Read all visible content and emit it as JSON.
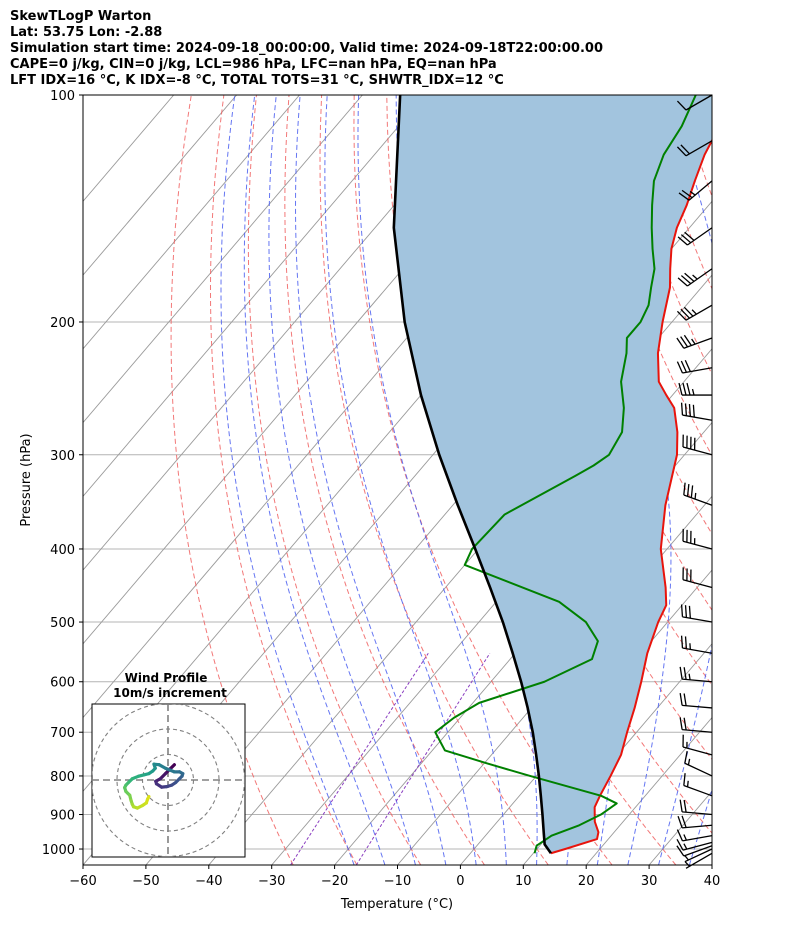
{
  "header": {
    "line1": "SkewTLogP Warton",
    "line2": "Lat: 53.75   Lon: -2.88",
    "line3": "Simulation start time: 2024-09-18_00:00:00, Valid time: 2024-09-18T22:00:00.00",
    "line4": "CAPE=0 j/kg, CIN=0 j/kg, LCL=986 hPa, LFC=nan hPa, EQ=nan hPa",
    "line5": "LFT IDX=16 °C, K IDX=-8 °C, TOTAL TOTS=31 °C, SHWTR_IDX=12 °C"
  },
  "colors": {
    "temperature": "#e8140c",
    "dewpoint": "#008000",
    "parcel": "#000000",
    "cape_fill": "#a2c4de",
    "dry_adiabat": "#f06060",
    "moist_adiabat": "#4a5ef0",
    "mixing_ratio": "#8a3ec0",
    "isotherm": "#9a9a9a",
    "grid": "#b4b4b4"
  },
  "chart_data": {
    "type": "skew-t",
    "xlabel": "Temperature (°C)",
    "ylabel": "Pressure (hPa)",
    "xlim": [
      -60,
      40
    ],
    "ylim": [
      1050,
      100
    ],
    "x_ticks": [
      "−60",
      "−50",
      "−40",
      "−30",
      "−20",
      "−10",
      "0",
      "10",
      "20",
      "30",
      "40"
    ],
    "y_ticks": [
      {
        "p": 100,
        "label": "100"
      },
      {
        "p": 200,
        "label": "200"
      },
      {
        "p": 300,
        "label": "300"
      },
      {
        "p": 400,
        "label": "400"
      },
      {
        "p": 500,
        "label": "500"
      },
      {
        "p": 600,
        "label": "600"
      },
      {
        "p": 700,
        "label": "700"
      },
      {
        "p": 800,
        "label": "800"
      },
      {
        "p": 900,
        "label": "900"
      },
      {
        "p": 1000,
        "label": "1000"
      }
    ],
    "series": [
      {
        "key": "temperature",
        "points": [
          [
            1013,
            12.8
          ],
          [
            1000,
            14.5
          ],
          [
            970,
            18.2
          ],
          [
            950,
            17.5
          ],
          [
            920,
            15.5
          ],
          [
            880,
            13.5
          ],
          [
            850,
            12.8
          ],
          [
            800,
            11.8
          ],
          [
            750,
            10.6
          ],
          [
            700,
            8.5
          ],
          [
            650,
            6.4
          ],
          [
            600,
            3.9
          ],
          [
            550,
            1.0
          ],
          [
            500,
            -1.5
          ],
          [
            475,
            -2.5
          ],
          [
            450,
            -5.0
          ],
          [
            400,
            -11.0
          ],
          [
            350,
            -16.2
          ],
          [
            300,
            -21.2
          ],
          [
            280,
            -24.2
          ],
          [
            260,
            -28.0
          ],
          [
            250,
            -31.0
          ],
          [
            240,
            -34.0
          ],
          [
            220,
            -38.0
          ],
          [
            200,
            -41.5
          ],
          [
            180,
            -45.0
          ],
          [
            170,
            -47.5
          ],
          [
            160,
            -50.0
          ],
          [
            150,
            -52.0
          ],
          [
            140,
            -53.5
          ],
          [
            130,
            -55.5
          ],
          [
            120,
            -57.5
          ],
          [
            110,
            -59.0
          ],
          [
            100,
            -61.5
          ]
        ]
      },
      {
        "key": "dewpoint",
        "points": [
          [
            1013,
            10.2
          ],
          [
            990,
            9.5
          ],
          [
            960,
            10.5
          ],
          [
            930,
            13.5
          ],
          [
            900,
            15.5
          ],
          [
            870,
            16.5
          ],
          [
            850,
            13.0
          ],
          [
            800,
            -1.0
          ],
          [
            770,
            -9.5
          ],
          [
            740,
            -18.0
          ],
          [
            700,
            -22.0
          ],
          [
            670,
            -21.0
          ],
          [
            640,
            -19.0
          ],
          [
            600,
            -11.5
          ],
          [
            560,
            -7.0
          ],
          [
            530,
            -8.5
          ],
          [
            500,
            -13.0
          ],
          [
            470,
            -20.0
          ],
          [
            420,
            -40.0
          ],
          [
            400,
            -41.0
          ],
          [
            360,
            -40.5
          ],
          [
            320,
            -34.5
          ],
          [
            310,
            -33.0
          ],
          [
            300,
            -32.0
          ],
          [
            280,
            -33.0
          ],
          [
            260,
            -36.0
          ],
          [
            240,
            -40.0
          ],
          [
            220,
            -43.0
          ],
          [
            210,
            -45.0
          ],
          [
            200,
            -45.0
          ],
          [
            190,
            -46.0
          ],
          [
            180,
            -48.0
          ],
          [
            170,
            -50.0
          ],
          [
            160,
            -53.0
          ],
          [
            150,
            -56.0
          ],
          [
            140,
            -59.0
          ],
          [
            130,
            -62.0
          ],
          [
            120,
            -64.0
          ],
          [
            110,
            -65.0
          ],
          [
            100,
            -67.0
          ]
        ]
      },
      {
        "key": "parcel",
        "points": [
          [
            1013,
            12.8
          ],
          [
            986,
            10.6
          ],
          [
            950,
            8.8
          ],
          [
            900,
            6.2
          ],
          [
            850,
            3.4
          ],
          [
            800,
            0.4
          ],
          [
            750,
            -2.9
          ],
          [
            700,
            -6.5
          ],
          [
            650,
            -10.6
          ],
          [
            600,
            -15.2
          ],
          [
            550,
            -20.4
          ],
          [
            500,
            -26.2
          ],
          [
            450,
            -32.9
          ],
          [
            400,
            -40.5
          ],
          [
            350,
            -49.2
          ],
          [
            300,
            -59.0
          ],
          [
            250,
            -70.0
          ],
          [
            200,
            -82.5
          ],
          [
            150,
            -97.0
          ],
          [
            100,
            -114.0
          ]
        ]
      }
    ],
    "barbs": [
      {
        "p": 1013,
        "spd": 6,
        "dir": 240
      },
      {
        "p": 1000,
        "spd": 8,
        "dir": 245
      },
      {
        "p": 990,
        "spd": 12,
        "dir": 250
      },
      {
        "p": 980,
        "spd": 16,
        "dir": 255
      },
      {
        "p": 960,
        "spd": 18,
        "dir": 260
      },
      {
        "p": 930,
        "spd": 20,
        "dir": 265
      },
      {
        "p": 900,
        "spd": 20,
        "dir": 275
      },
      {
        "p": 850,
        "spd": 15,
        "dir": 290
      },
      {
        "p": 800,
        "spd": 15,
        "dir": 295
      },
      {
        "p": 750,
        "spd": 15,
        "dir": 285
      },
      {
        "p": 700,
        "spd": 20,
        "dir": 275
      },
      {
        "p": 650,
        "spd": 20,
        "dir": 275
      },
      {
        "p": 600,
        "spd": 25,
        "dir": 275
      },
      {
        "p": 550,
        "spd": 25,
        "dir": 280
      },
      {
        "p": 500,
        "spd": 30,
        "dir": 280
      },
      {
        "p": 450,
        "spd": 30,
        "dir": 285
      },
      {
        "p": 400,
        "spd": 35,
        "dir": 285
      },
      {
        "p": 350,
        "spd": 35,
        "dir": 290
      },
      {
        "p": 300,
        "spd": 40,
        "dir": 285
      },
      {
        "p": 270,
        "spd": 40,
        "dir": 280
      },
      {
        "p": 250,
        "spd": 35,
        "dir": 270
      },
      {
        "p": 230,
        "spd": 30,
        "dir": 260
      },
      {
        "p": 210,
        "spd": 35,
        "dir": 250
      },
      {
        "p": 190,
        "spd": 35,
        "dir": 240
      },
      {
        "p": 170,
        "spd": 35,
        "dir": 235
      },
      {
        "p": 150,
        "spd": 30,
        "dir": 235
      },
      {
        "p": 130,
        "spd": 25,
        "dir": 230
      },
      {
        "p": 115,
        "spd": 20,
        "dir": 240
      },
      {
        "p": 100,
        "spd": 10,
        "dir": 240
      }
    ],
    "hodograph": {
      "title_line1": "Wind Profile",
      "title_line2": "10m/s increment",
      "ring_increment_ms": 10,
      "points": [
        [
          2.5,
          6.0
        ],
        [
          1.0,
          4.5
        ],
        [
          -1.0,
          2.5
        ],
        [
          -3.0,
          0.5
        ],
        [
          -4.8,
          -0.5
        ],
        [
          -4.5,
          -1.5
        ],
        [
          -2.5,
          -2.8
        ],
        [
          -0.5,
          -2.6
        ],
        [
          1.5,
          -2.0
        ],
        [
          3.0,
          -1.0
        ],
        [
          4.5,
          0.5
        ],
        [
          5.5,
          1.5
        ],
        [
          5.8,
          2.5
        ],
        [
          4.5,
          3.2
        ],
        [
          2.5,
          3.2
        ],
        [
          -1.0,
          4.6
        ],
        [
          -3.5,
          6.0
        ],
        [
          -5.5,
          6.2
        ],
        [
          -5.0,
          4.6
        ],
        [
          -6.0,
          3.5
        ],
        [
          -7.5,
          2.5
        ],
        [
          -9.5,
          2.0
        ],
        [
          -11.5,
          1.5
        ],
        [
          -14.0,
          0.5
        ],
        [
          -15.5,
          -1.0
        ],
        [
          -16.5,
          -2.0
        ],
        [
          -17.0,
          -3.0
        ],
        [
          -16.5,
          -4.5
        ],
        [
          -15.0,
          -6.0
        ],
        [
          -14.5,
          -8.0
        ],
        [
          -14.0,
          -9.5
        ],
        [
          -13.5,
          -10.5
        ],
        [
          -12.0,
          -11.0
        ],
        [
          -10.0,
          -10.0
        ],
        [
          -8.5,
          -9.0
        ],
        [
          -8.0,
          -7.5
        ],
        [
          -7.5,
          -6.5
        ]
      ]
    }
  }
}
